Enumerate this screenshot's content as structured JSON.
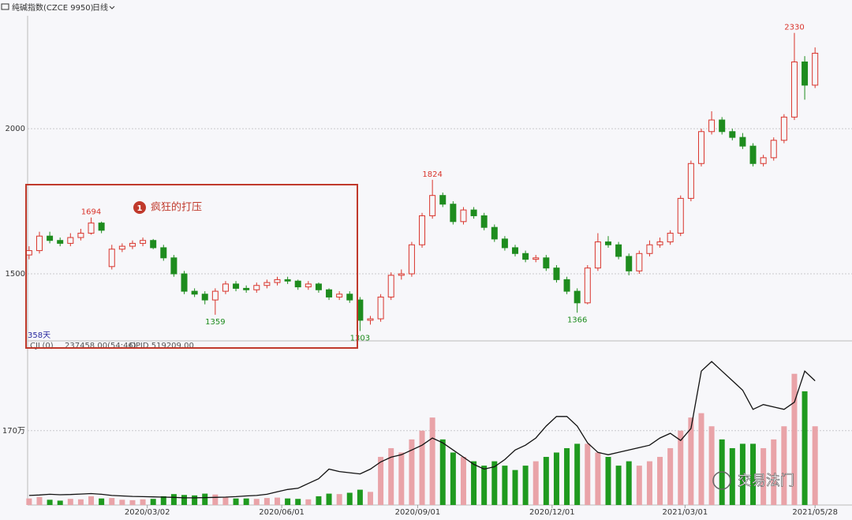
{
  "chart_data": {
    "type": "candlestick",
    "title": "纯碱指数(CZCE 9950)",
    "period": "日线",
    "span_label": "358天",
    "indicator_header": [
      "CJL(0)",
      "237458.00(54:46)",
      "OPID 519209.00"
    ],
    "up_color": "#d9342b",
    "down_color": "#1e8c1e",
    "x": [
      "2019/12/13",
      "2019/12/20",
      "2019/12/27",
      "2020/01/03",
      "2020/01/10",
      "2020/01/17",
      "2020/01/24",
      "2020/01/31",
      "2020/02/07",
      "2020/02/14",
      "2020/02/21",
      "2020/02/28",
      "2020/03/06",
      "2020/03/13",
      "2020/03/20",
      "2020/03/27",
      "2020/04/03",
      "2020/04/10",
      "2020/04/17",
      "2020/04/24",
      "2020/05/01",
      "2020/05/08",
      "2020/05/15",
      "2020/05/22",
      "2020/05/29",
      "2020/06/05",
      "2020/06/12",
      "2020/06/19",
      "2020/06/26",
      "2020/07/03",
      "2020/07/10",
      "2020/07/17",
      "2020/07/24",
      "2020/07/31",
      "2020/08/07",
      "2020/08/14",
      "2020/08/21",
      "2020/08/28",
      "2020/09/04",
      "2020/09/11",
      "2020/09/18",
      "2020/09/25",
      "2020/10/02",
      "2020/10/09",
      "2020/10/16",
      "2020/10/23",
      "2020/10/30",
      "2020/11/06",
      "2020/11/13",
      "2020/11/20",
      "2020/11/27",
      "2020/12/04",
      "2020/12/11",
      "2020/12/18",
      "2020/12/25",
      "2021/01/01",
      "2021/01/08",
      "2021/01/15",
      "2021/01/22",
      "2021/01/29",
      "2021/02/05",
      "2021/02/12",
      "2021/02/19",
      "2021/02/26",
      "2021/03/05",
      "2021/03/12",
      "2021/03/19",
      "2021/03/26",
      "2021/04/02",
      "2021/04/09",
      "2021/04/16",
      "2021/04/23",
      "2021/04/30",
      "2021/05/07",
      "2021/05/14",
      "2021/05/21",
      "2021/05/28"
    ],
    "open": [
      1565,
      1580,
      1630,
      1615,
      1605,
      1625,
      1640,
      1675,
      1525,
      1585,
      1595,
      1605,
      1615,
      1590,
      1555,
      1500,
      1440,
      1430,
      1410,
      1440,
      1465,
      1450,
      1445,
      1460,
      1470,
      1480,
      1475,
      1455,
      1465,
      1445,
      1420,
      1430,
      1410,
      1340,
      1345,
      1420,
      1495,
      1500,
      1600,
      1700,
      1770,
      1740,
      1680,
      1720,
      1700,
      1660,
      1620,
      1590,
      1570,
      1550,
      1555,
      1520,
      1480,
      1440,
      1400,
      1520,
      1610,
      1600,
      1560,
      1510,
      1570,
      1600,
      1610,
      1640,
      1760,
      1880,
      1990,
      2030,
      1990,
      1970,
      1940,
      1880,
      1900,
      1960,
      2040,
      2230,
      2150
    ],
    "high": [
      1595,
      1645,
      1645,
      1625,
      1640,
      1655,
      1694,
      1680,
      1600,
      1605,
      1615,
      1625,
      1620,
      1600,
      1565,
      1510,
      1450,
      1440,
      1450,
      1475,
      1475,
      1460,
      1470,
      1480,
      1490,
      1490,
      1480,
      1475,
      1470,
      1450,
      1440,
      1440,
      1420,
      1355,
      1430,
      1505,
      1515,
      1610,
      1710,
      1824,
      1780,
      1750,
      1730,
      1730,
      1710,
      1670,
      1630,
      1600,
      1580,
      1565,
      1565,
      1530,
      1490,
      1450,
      1530,
      1640,
      1630,
      1610,
      1570,
      1580,
      1615,
      1625,
      1650,
      1770,
      1890,
      2000,
      2060,
      2040,
      2000,
      1985,
      1950,
      1910,
      1970,
      2050,
      2330,
      2250,
      2280
    ],
    "low": [
      1550,
      1570,
      1605,
      1595,
      1595,
      1615,
      1635,
      1640,
      1515,
      1575,
      1585,
      1595,
      1585,
      1545,
      1490,
      1430,
      1420,
      1395,
      1359,
      1430,
      1440,
      1435,
      1435,
      1450,
      1460,
      1465,
      1445,
      1445,
      1435,
      1410,
      1410,
      1400,
      1303,
      1325,
      1335,
      1410,
      1480,
      1490,
      1590,
      1690,
      1730,
      1670,
      1670,
      1690,
      1650,
      1610,
      1580,
      1560,
      1540,
      1540,
      1510,
      1470,
      1430,
      1366,
      1395,
      1510,
      1590,
      1550,
      1495,
      1500,
      1560,
      1590,
      1600,
      1630,
      1750,
      1870,
      1980,
      1980,
      1960,
      1930,
      1870,
      1870,
      1890,
      1950,
      2030,
      2100,
      2140
    ],
    "close": [
      1580,
      1630,
      1615,
      1605,
      1625,
      1640,
      1675,
      1650,
      1585,
      1595,
      1605,
      1615,
      1590,
      1555,
      1500,
      1440,
      1430,
      1410,
      1440,
      1465,
      1450,
      1445,
      1460,
      1470,
      1480,
      1475,
      1455,
      1465,
      1445,
      1420,
      1430,
      1410,
      1340,
      1345,
      1420,
      1495,
      1500,
      1600,
      1700,
      1770,
      1740,
      1680,
      1720,
      1700,
      1660,
      1620,
      1590,
      1570,
      1550,
      1555,
      1520,
      1480,
      1440,
      1400,
      1520,
      1610,
      1600,
      1560,
      1510,
      1570,
      1600,
      1610,
      1640,
      1760,
      1880,
      1990,
      2030,
      1990,
      1970,
      1940,
      1880,
      1900,
      1960,
      2040,
      2230,
      2150,
      2260
    ],
    "xlim": [
      "2019/12/12",
      "2021/06/22"
    ],
    "xticks": [
      "2020/03/02",
      "2020/06/01",
      "2020/09/01",
      "2020/12/01",
      "2021/03/01",
      "2021/05/28"
    ],
    "ylim": [
      1269,
      2389
    ],
    "yticks": [
      1500,
      2000
    ],
    "annotations": [
      {
        "x": "2020/01/24",
        "value": 1694
      },
      {
        "x": "2020/04/17",
        "value": 1359
      },
      {
        "x": "2020/07/24",
        "value": 1303
      },
      {
        "x": "2020/09/11",
        "value": 1824
      },
      {
        "x": "2020/12/18",
        "value": 1366
      },
      {
        "x": "2021/05/14",
        "value": 2330
      }
    ],
    "volume": {
      "values": [
        150000,
        180000,
        120000,
        100000,
        140000,
        130000,
        200000,
        150000,
        160000,
        120000,
        110000,
        130000,
        140000,
        200000,
        250000,
        230000,
        220000,
        260000,
        240000,
        180000,
        150000,
        150000,
        140000,
        160000,
        170000,
        150000,
        140000,
        130000,
        200000,
        260000,
        250000,
        280000,
        350000,
        300000,
        1100000,
        1300000,
        1200000,
        1500000,
        1700000,
        2000000,
        1500000,
        1200000,
        1100000,
        1000000,
        900000,
        1000000,
        900000,
        800000,
        900000,
        1000000,
        1100000,
        1200000,
        1300000,
        1400000,
        1400000,
        1200000,
        1100000,
        900000,
        1000000,
        900000,
        1000000,
        1100000,
        1300000,
        1700000,
        2000000,
        2100000,
        1800000,
        1500000,
        1300000,
        1400000,
        1400000,
        1300000,
        1500000,
        1800000,
        3000000,
        2600000,
        1800000
      ],
      "up_color": "#e9a3a8",
      "down_color": "#1f9a1f",
      "ylim": [
        0,
        3500000
      ],
      "yticks": [
        {
          "value": 1700000,
          "label": "170万"
        }
      ]
    },
    "open_interest": {
      "color": "#111111",
      "values": [
        40000,
        42000,
        45000,
        43000,
        44000,
        46000,
        48000,
        45000,
        40000,
        38000,
        36000,
        35000,
        34000,
        33000,
        32000,
        30000,
        30000,
        31000,
        32000,
        33000,
        35000,
        38000,
        40000,
        45000,
        55000,
        65000,
        70000,
        90000,
        110000,
        150000,
        140000,
        135000,
        130000,
        150000,
        180000,
        200000,
        210000,
        230000,
        250000,
        280000,
        260000,
        230000,
        200000,
        170000,
        150000,
        160000,
        190000,
        230000,
        250000,
        280000,
        330000,
        370000,
        370000,
        330000,
        260000,
        220000,
        210000,
        220000,
        230000,
        240000,
        250000,
        280000,
        300000,
        270000,
        320000,
        560000,
        600000,
        560000,
        520000,
        480000,
        400000,
        420000,
        410000,
        400000,
        430000,
        560000,
        519209
      ],
      "ylim": [
        0,
        640000
      ]
    },
    "highlight": {
      "number": "1",
      "text": "疯狂的打压"
    },
    "watermark": "交易法门"
  }
}
